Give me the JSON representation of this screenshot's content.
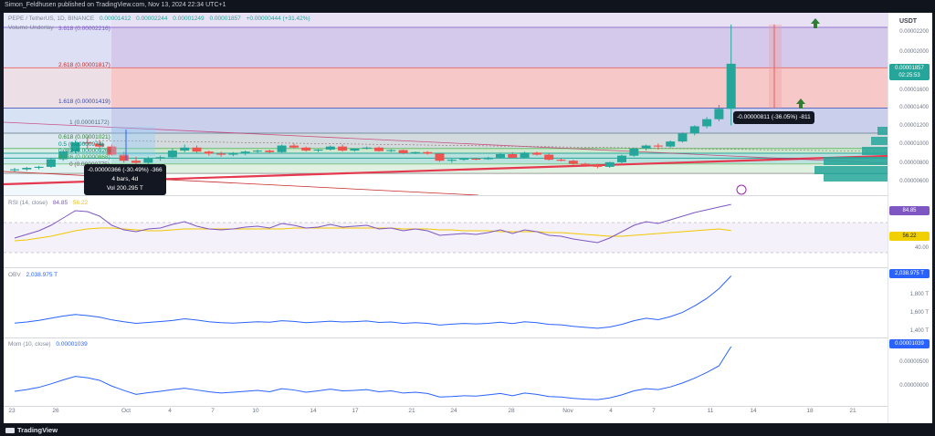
{
  "header": {
    "published": "Simon_Feldhusen published on TradingView.com, Nov 13, 2024 22:34 UTC+1"
  },
  "footer": {
    "brand": "TradingView"
  },
  "price_pane": {
    "symbol_legend": "PEPE / TetherUS, 1D, BINANCE",
    "ohlc": [
      "0.00001412",
      "0.00002244",
      "0.00001249",
      "0.00001857",
      "+0.00000444 (+31.42%)"
    ],
    "volume_legend": "Volume Underlay",
    "currency": "USDT",
    "price_badge": "0.00001857",
    "countdown": "02:25:53",
    "axis_ticks": [
      "0.00002200",
      "0.00002000",
      "0.00001800",
      "0.00001600",
      "0.00001400",
      "0.00001200",
      "0.00001000",
      "0.00000800",
      "0.00000600"
    ],
    "fib_levels": [
      {
        "label": "3.618 (0.00002216)",
        "price": 2.216e-05,
        "color": "#9575cd"
      },
      {
        "label": "2.618 (0.00001817)",
        "price": 1.817e-05,
        "color": "#e57373"
      },
      {
        "label": "1.618 (0.00001419)",
        "price": 1.419e-05,
        "color": "#5c6bc0"
      },
      {
        "label": "1 (0.00001172)",
        "price": 1.172e-05,
        "color": "#78909c"
      },
      {
        "label": "0.618 (0.00001021)",
        "price": 1.021e-05,
        "color": "#66bb6a"
      },
      {
        "label": "0.5 (0.00000974)",
        "price": 9.74e-06,
        "color": "#26a69a"
      },
      {
        "label": "0.382 (0.00000926)",
        "price": 9.26e-06,
        "color": "#26a69a"
      },
      {
        "label": "0.236 (0.00000868)",
        "price": 8.68e-06,
        "color": "#81c784"
      },
      {
        "label": "0 (0.00000775)",
        "price": 7.75e-06,
        "color": "#9e9e9e"
      }
    ],
    "measure_left": {
      "line1": "-0.00000366 (-30.49%) -366",
      "line2": "4 bars, 4d",
      "line3": "Vol 200.295 T"
    },
    "measure_right": {
      "line1": "-0.00000811 (-36.05%) -811"
    }
  },
  "rsi_pane": {
    "legend": "RSI (14, close)",
    "value": "84.85",
    "ma_value": "56.22",
    "badge": "84.85",
    "ma_badge": "56.22",
    "axis_ticks": [
      "40.00"
    ]
  },
  "obv_pane": {
    "legend": "OBV",
    "value": "2,038.975 T",
    "badge": "2,038.975 T",
    "axis_ticks": [
      "1,800 T",
      "1,600 T",
      "1,400 T"
    ]
  },
  "mom_pane": {
    "legend": "Mom (10, close)",
    "value": "0.00001039",
    "badge": "0.00001039",
    "axis_ticks": [
      "0.00000500",
      "0.00000000"
    ]
  },
  "time_axis": [
    "23",
    "26",
    "Oct",
    "4",
    "7",
    "10",
    "14",
    "17",
    "21",
    "24",
    "28",
    "Nov",
    "4",
    "7",
    "11",
    "14",
    "18",
    "21"
  ],
  "chart_data": {
    "type": "line",
    "title": "PEPE / TetherUS, 1D, BINANCE",
    "candles": [
      {
        "o": 8.05e-06,
        "h": 8.3e-06,
        "l": 7.9e-06,
        "c": 8.15e-06
      },
      {
        "o": 8.15e-06,
        "h": 8.4e-06,
        "l": 8e-06,
        "c": 8.3e-06
      },
      {
        "o": 8.3e-06,
        "h": 8.5e-06,
        "l": 8.15e-06,
        "c": 8.4e-06
      },
      {
        "o": 8.4e-06,
        "h": 9.3e-06,
        "l": 8.3e-06,
        "c": 9.15e-06
      },
      {
        "o": 9.15e-06,
        "h": 1.01e-05,
        "l": 9e-06,
        "c": 9.9e-06
      },
      {
        "o": 9.9e-06,
        "h": 1.1e-05,
        "l": 9.75e-06,
        "c": 1.08e-05
      },
      {
        "o": 1.08e-05,
        "h": 1.14e-05,
        "l": 1.02e-05,
        "c": 1.07e-05
      },
      {
        "o": 1.07e-05,
        "h": 1.1e-05,
        "l": 1.02e-05,
        "c": 1.04e-05
      },
      {
        "o": 1.04e-05,
        "h": 1.06e-05,
        "l": 9.5e-06,
        "c": 9.6e-06
      },
      {
        "o": 9.6e-06,
        "h": 9.9e-06,
        "l": 8.8e-06,
        "c": 9e-06
      },
      {
        "o": 9e-06,
        "h": 9.4e-06,
        "l": 8.6e-06,
        "c": 8.8e-06
      },
      {
        "o": 8.8e-06,
        "h": 9.4e-06,
        "l": 8.7e-06,
        "c": 9.2e-06
      },
      {
        "o": 9.2e-06,
        "h": 9.5e-06,
        "l": 9e-06,
        "c": 9.35e-06
      },
      {
        "o": 9.35e-06,
        "h": 1.02e-05,
        "l": 9.25e-06,
        "c": 1e-05
      },
      {
        "o": 1e-05,
        "h": 1.06e-05,
        "l": 9.85e-06,
        "c": 1.03e-05
      },
      {
        "o": 1.03e-05,
        "h": 1.05e-05,
        "l": 9.8e-06,
        "c": 9.9e-06
      },
      {
        "o": 9.9e-06,
        "h": 1e-05,
        "l": 9.5e-06,
        "c": 9.7e-06
      },
      {
        "o": 9.7e-06,
        "h": 9.9e-06,
        "l": 9.4e-06,
        "c": 9.6e-06
      },
      {
        "o": 9.6e-06,
        "h": 9.85e-06,
        "l": 9.45e-06,
        "c": 9.7e-06
      },
      {
        "o": 9.7e-06,
        "h": 1e-05,
        "l": 9.55e-06,
        "c": 9.9e-06
      },
      {
        "o": 9.9e-06,
        "h": 1.01e-05,
        "l": 9.75e-06,
        "c": 1e-05
      },
      {
        "o": 1e-05,
        "h": 1.01e-05,
        "l": 9.7e-06,
        "c": 9.85e-06
      },
      {
        "o": 9.85e-06,
        "h": 1.06e-05,
        "l": 9.8e-06,
        "c": 1.05e-05
      },
      {
        "o": 1.05e-05,
        "h": 1.07e-05,
        "l": 1.02e-05,
        "c": 1.03e-05
      },
      {
        "o": 1.03e-05,
        "h": 1.04e-05,
        "l": 9.9e-06,
        "c": 1e-05
      },
      {
        "o": 1e-05,
        "h": 1.015e-05,
        "l": 9.85e-06,
        "c": 1.01e-05
      },
      {
        "o": 1.01e-05,
        "h": 1.05e-05,
        "l": 1e-05,
        "c": 1.04e-05
      },
      {
        "o": 1.04e-05,
        "h": 1.06e-05,
        "l": 9.9e-06,
        "c": 1e-05
      },
      {
        "o": 1e-05,
        "h": 1.02e-05,
        "l": 9.9e-06,
        "c": 1.02e-05
      },
      {
        "o": 1.02e-05,
        "h": 1.04e-05,
        "l": 1.01e-05,
        "c": 1.03e-05
      },
      {
        "o": 1.03e-05,
        "h": 1.04e-05,
        "l": 9.9e-06,
        "c": 9.95e-06
      },
      {
        "o": 9.95e-06,
        "h": 1.015e-05,
        "l": 9.85e-06,
        "c": 1.005e-05
      },
      {
        "o": 1.005e-05,
        "h": 1.01e-05,
        "l": 9.65e-06,
        "c": 9.75e-06
      },
      {
        "o": 9.75e-06,
        "h": 9.9e-06,
        "l": 9.65e-06,
        "c": 9.85e-06
      },
      {
        "o": 9.85e-06,
        "h": 9.95e-06,
        "l": 9.6e-06,
        "c": 9.7e-06
      },
      {
        "o": 9.7e-06,
        "h": 9.8e-06,
        "l": 8.9e-06,
        "c": 9e-06
      },
      {
        "o": 9e-06,
        "h": 9.2e-06,
        "l": 8.8e-06,
        "c": 9.1e-06
      },
      {
        "o": 9.1e-06,
        "h": 9.3e-06,
        "l": 9e-06,
        "c": 9.2e-06
      },
      {
        "o": 9.2e-06,
        "h": 9.3e-06,
        "l": 9.05e-06,
        "c": 9.15e-06
      },
      {
        "o": 9.15e-06,
        "h": 9.4e-06,
        "l": 9.1e-06,
        "c": 9.3e-06
      },
      {
        "o": 9.3e-06,
        "h": 9.8e-06,
        "l": 9.2e-06,
        "c": 9.65e-06
      },
      {
        "o": 9.65e-06,
        "h": 9.85e-06,
        "l": 9.2e-06,
        "c": 9.3e-06
      },
      {
        "o": 9.3e-06,
        "h": 9.9e-06,
        "l": 9.2e-06,
        "c": 9.8e-06
      },
      {
        "o": 9.8e-06,
        "h": 9.9e-06,
        "l": 9.5e-06,
        "c": 9.6e-06
      },
      {
        "o": 9.6e-06,
        "h": 9.7e-06,
        "l": 9e-06,
        "c": 9.1e-06
      },
      {
        "o": 9.1e-06,
        "h": 9.2e-06,
        "l": 8.95e-06,
        "c": 9e-06
      },
      {
        "o": 9e-06,
        "h": 9.1e-06,
        "l": 8.6e-06,
        "c": 8.7e-06
      },
      {
        "o": 8.7e-06,
        "h": 8.8e-06,
        "l": 8.4e-06,
        "c": 8.55e-06
      },
      {
        "o": 8.55e-06,
        "h": 8.7e-06,
        "l": 8.25e-06,
        "c": 8.4e-06
      },
      {
        "o": 8.4e-06,
        "h": 8.9e-06,
        "l": 8.3e-06,
        "c": 8.85e-06
      },
      {
        "o": 8.85e-06,
        "h": 9.6e-06,
        "l": 8.75e-06,
        "c": 9.5e-06
      },
      {
        "o": 9.5e-06,
        "h": 1.03e-05,
        "l": 9.4e-06,
        "c": 1.02e-05
      },
      {
        "o": 1.02e-05,
        "h": 1.06e-05,
        "l": 1e-05,
        "c": 1.05e-05
      },
      {
        "o": 1.05e-05,
        "h": 1.07e-05,
        "l": 1.01e-05,
        "c": 1.04e-05
      },
      {
        "o": 1.04e-05,
        "h": 1.1e-05,
        "l": 1.03e-05,
        "c": 1.09e-05
      },
      {
        "o": 1.09e-05,
        "h": 1.18e-05,
        "l": 1.08e-05,
        "c": 1.17e-05
      },
      {
        "o": 1.17e-05,
        "h": 1.25e-05,
        "l": 1.15e-05,
        "c": 1.24e-05
      },
      {
        "o": 1.24e-05,
        "h": 1.33e-05,
        "l": 1.22e-05,
        "c": 1.31e-05
      },
      {
        "o": 1.31e-05,
        "h": 1.45e-05,
        "l": 1.29e-05,
        "c": 1.412e-05
      },
      {
        "o": 1.412e-05,
        "h": 2.244e-05,
        "l": 1.249e-05,
        "c": 1.857e-05
      }
    ],
    "rsi": [
      48,
      52,
      56,
      62,
      70,
      78,
      77,
      72,
      62,
      57,
      55,
      58,
      59,
      63,
      66,
      61,
      58,
      57,
      58,
      60,
      61,
      59,
      64,
      62,
      59,
      60,
      63,
      60,
      61,
      62,
      58,
      59,
      56,
      58,
      56,
      51,
      52,
      53,
      52,
      54,
      57,
      53,
      57,
      55,
      51,
      50,
      47,
      45,
      43,
      48,
      55,
      62,
      66,
      64,
      68,
      72,
      76,
      79,
      82,
      84.85
    ],
    "rsi_ma": [
      45,
      46,
      48,
      50,
      53,
      56,
      58,
      59,
      59,
      58,
      57,
      56,
      56,
      57,
      58,
      58,
      58,
      58,
      58,
      58,
      58,
      58,
      58,
      59,
      59,
      59,
      59,
      59,
      59,
      59,
      59,
      59,
      58,
      58,
      58,
      57,
      57,
      56,
      56,
      56,
      55,
      55,
      55,
      55,
      54,
      54,
      53,
      52,
      51,
      50,
      50,
      51,
      52,
      53,
      54,
      55,
      56,
      57,
      58,
      56.22
    ],
    "obv": [
      1600,
      1610,
      1625,
      1645,
      1665,
      1680,
      1670,
      1655,
      1630,
      1612,
      1598,
      1606,
      1615,
      1624,
      1640,
      1628,
      1612,
      1604,
      1600,
      1606,
      1612,
      1608,
      1622,
      1616,
      1604,
      1610,
      1618,
      1610,
      1614,
      1620,
      1606,
      1610,
      1598,
      1604,
      1598,
      1582,
      1590,
      1596,
      1592,
      1598,
      1608,
      1596,
      1612,
      1604,
      1588,
      1584,
      1570,
      1560,
      1552,
      1564,
      1588,
      1622,
      1645,
      1632,
      1660,
      1700,
      1760,
      1830,
      1920,
      2038.975
    ],
    "mom": [
      2e-07,
      6e-07,
      1.1e-06,
      1.9e-06,
      2.8e-06,
      3.6e-06,
      3.3e-06,
      2.7e-06,
      1.4e-06,
      4e-07,
      -5e-07,
      -1e-07,
      2e-07,
      6e-07,
      9e-07,
      5e-07,
      1e-07,
      -2e-07,
      0.0,
      2e-07,
      4e-07,
      1e-07,
      8e-07,
      5e-07,
      0.0,
      3e-07,
      7e-07,
      3e-07,
      4e-07,
      6e-07,
      1e-07,
      3e-07,
      -2e-07,
      0.0,
      -3e-07,
      -1.1e-06,
      -1e-06,
      -8e-07,
      -9e-07,
      -6e-07,
      -3e-07,
      -8e-07,
      -2e-07,
      -5e-07,
      -1e-06,
      -1.1e-06,
      -1.4e-06,
      -1.6e-06,
      -1.7e-06,
      -1.3e-06,
      -6e-07,
      3e-07,
      8e-07,
      6e-07,
      1.2e-06,
      2.1e-06,
      3.2e-06,
      4.5e-06,
      6e-06,
      1.039e-05
    ]
  }
}
